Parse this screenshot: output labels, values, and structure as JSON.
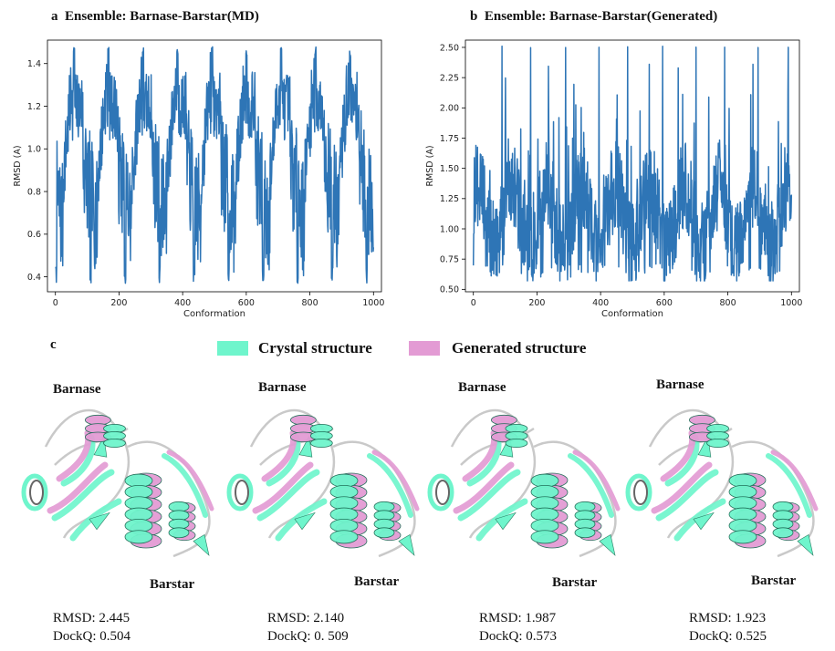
{
  "panel_c": {
    "letter": "c",
    "legend": [
      {
        "label": "Crystal structure",
        "color": "#6FF5CC"
      },
      {
        "label": "Generated structure",
        "color": "#E39BD4"
      }
    ],
    "structures": [
      {
        "top_label": "Barnase",
        "bottom_label": "Barstar",
        "rmsd": "RMSD: 2.445",
        "dockq": "DockQ: 0.504"
      },
      {
        "top_label": "Barnase",
        "bottom_label": "Barstar",
        "rmsd": "RMSD: 2.140",
        "dockq": "DockQ: 0. 509"
      },
      {
        "top_label": "Barnase",
        "bottom_label": "Barstar",
        "rmsd": "RMSD: 1.987",
        "dockq": "DockQ: 0.573"
      },
      {
        "top_label": "Barnase",
        "bottom_label": "Barstar",
        "rmsd": "RMSD: 1.923",
        "dockq": "DockQ: 0.525"
      }
    ]
  },
  "chart_data": [
    {
      "type": "line",
      "panel_letter": "a",
      "title": "Ensemble: Barnase-Barstar(MD)",
      "xlabel": "Conformation",
      "ylabel": "RMSD (A)",
      "xlim": [
        -25,
        1025
      ],
      "ylim": [
        0.33,
        1.51
      ],
      "xticks": [
        0,
        200,
        400,
        600,
        800,
        1000
      ],
      "xtick_labels": [
        "0",
        "200",
        "400",
        "600",
        "800",
        "1000"
      ],
      "yticks": [
        0.4,
        0.6,
        0.8,
        1.0,
        1.2,
        1.4
      ],
      "ytick_labels": [
        "0.4",
        "0.6",
        "0.8",
        "1.0",
        "1.2",
        "1.4"
      ],
      "color": "#2E75B6",
      "pattern": {
        "period": 108.5,
        "n_points": 1000,
        "min": 0.37,
        "max": 1.48,
        "base": 0.9
      },
      "peaks_x": [
        75,
        183,
        292,
        400,
        509,
        617,
        726,
        834,
        942
      ],
      "troughs_x": [
        30,
        138,
        247,
        355,
        464,
        572,
        681,
        789,
        897
      ]
    },
    {
      "type": "line",
      "panel_letter": "b",
      "title": "Ensemble: Barnase-Barstar(Generated)",
      "xlabel": "Conformation",
      "ylabel": "RMSD (A)",
      "xlim": [
        -25,
        1025
      ],
      "ylim": [
        0.48,
        2.56
      ],
      "xticks": [
        0,
        200,
        400,
        600,
        800,
        1000
      ],
      "xtick_labels": [
        "0",
        "200",
        "400",
        "600",
        "800",
        "1000"
      ],
      "yticks": [
        0.5,
        0.75,
        1.0,
        1.25,
        1.5,
        1.75,
        2.0,
        2.25,
        2.5
      ],
      "ytick_labels": [
        "0.50",
        "0.75",
        "1.00",
        "1.25",
        "1.50",
        "1.75",
        "2.00",
        "2.25",
        "2.50"
      ],
      "color": "#2E75B6",
      "pattern": {
        "period": 108.5,
        "n_points": 1000,
        "min": 0.57,
        "max": 2.51,
        "base": 1.15
      },
      "peaks_x": [
        90,
        180,
        290,
        395,
        485,
        595,
        700,
        790,
        895,
        990
      ]
    }
  ]
}
